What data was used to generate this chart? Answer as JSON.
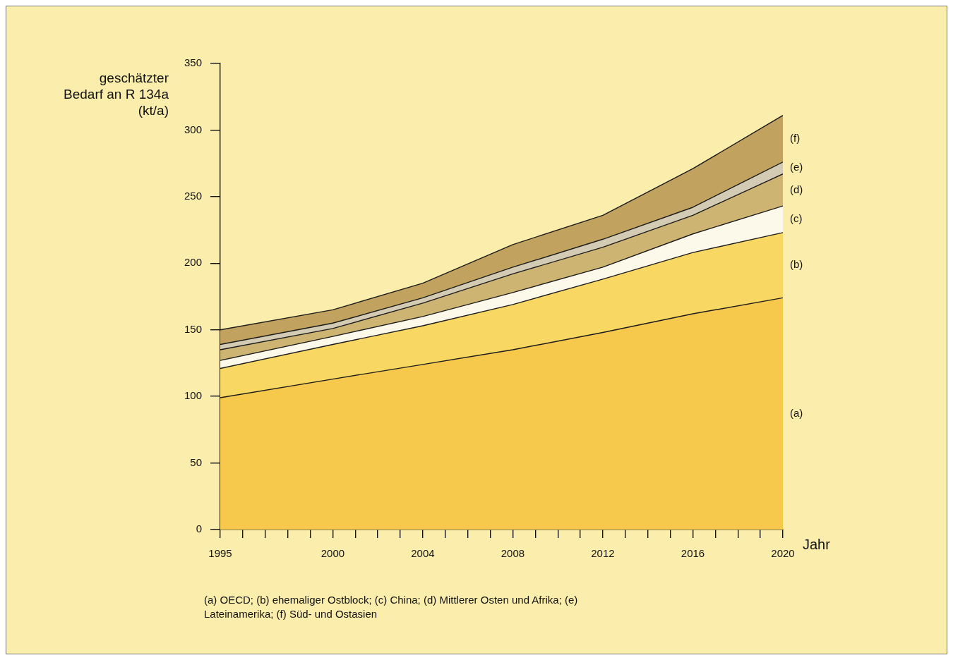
{
  "chart_data": {
    "type": "area",
    "stacked": true,
    "ylabel": "geschätzter Bedarf an R 134a (kt/a)",
    "xlabel": "Jahr",
    "x": [
      1995,
      2000,
      2004,
      2008,
      2012,
      2016,
      2020
    ],
    "series": [
      {
        "name": "(a)",
        "color": "#f6c84c",
        "values": [
          99,
          113,
          124,
          135,
          148,
          162,
          174
        ]
      },
      {
        "name": "(b)",
        "color": "#f8d862",
        "values": [
          22,
          26,
          29,
          34,
          40,
          46,
          49
        ]
      },
      {
        "name": "(c)",
        "color": "#fdf9ea",
        "values": [
          6,
          6,
          7,
          9,
          9,
          14,
          20
        ]
      },
      {
        "name": "(d)",
        "color": "#cdb472",
        "values": [
          8,
          6,
          10,
          14,
          15,
          14,
          24
        ]
      },
      {
        "name": "(e)",
        "color": "#d3cbb3",
        "values": [
          4,
          4,
          4,
          5,
          6,
          6,
          9
        ]
      },
      {
        "name": "(f)",
        "color": "#c1a25e",
        "values": [
          11,
          10,
          11,
          17,
          18,
          29,
          35
        ]
      }
    ],
    "xlim": [
      1995,
      2020
    ],
    "xticks": [
      1995,
      {
        "value": 1996,
        "label": null
      },
      {
        "value": 1997,
        "label": null
      },
      {
        "value": 1998,
        "label": null
      },
      {
        "value": 1999,
        "label": null
      },
      2000,
      {
        "value": 2001,
        "label": null
      },
      {
        "value": 2002,
        "label": null
      },
      {
        "value": 2003,
        "label": null
      },
      2004,
      {
        "value": 2005,
        "label": null
      },
      {
        "value": 2006,
        "label": null
      },
      {
        "value": 2007,
        "label": null
      },
      2008,
      {
        "value": 2009,
        "label": null
      },
      {
        "value": 2010,
        "label": null
      },
      {
        "value": 2011,
        "label": null
      },
      2012,
      {
        "value": 2013,
        "label": null
      },
      {
        "value": 2014,
        "label": null
      },
      {
        "value": 2015,
        "label": null
      },
      2016,
      {
        "value": 2017,
        "label": null
      },
      {
        "value": 2018,
        "label": null
      },
      {
        "value": 2019,
        "label": null
      },
      2020
    ],
    "ylim": [
      0,
      350
    ],
    "yticks": [
      0,
      50,
      100,
      150,
      200,
      250,
      300,
      350
    ],
    "grid": false,
    "legend": false,
    "marker": "none",
    "line_style": "solid",
    "annotations": [
      "(a) OECD; (b) ehemaliger Ostblock; (c) China; (d) Mittlerer Osten und Afrika; (e) Lateinamerika; (f) Süd- und Ostasien"
    ]
  }
}
